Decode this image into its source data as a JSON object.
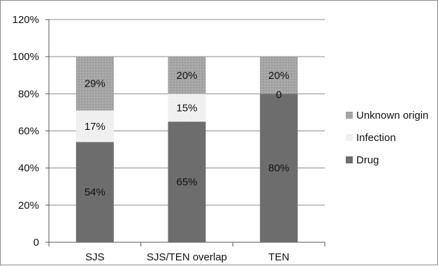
{
  "chart_data": {
    "type": "bar",
    "stacked": true,
    "categories": [
      "SJS",
      "SJS/TEN overlap",
      "TEN"
    ],
    "series": [
      {
        "name": "Drug",
        "values": [
          54,
          65,
          80
        ],
        "labels": [
          "54%",
          "65%",
          "80%"
        ],
        "color": "#6d6d6d",
        "pattern": "solid"
      },
      {
        "name": "Infection",
        "values": [
          17,
          15,
          0
        ],
        "labels": [
          "17%",
          "15%",
          "0"
        ],
        "color": "#f0f0f0",
        "pattern": "light-speckle"
      },
      {
        "name": "Unknown origin",
        "values": [
          29,
          20,
          20
        ],
        "labels": [
          "29%",
          "20%",
          "20%"
        ],
        "color": "#a3a3a3",
        "pattern": "dark-speckle"
      }
    ],
    "yticks": [
      "0",
      "20%",
      "40%",
      "60%",
      "80%",
      "100%",
      "120%"
    ],
    "ylim": [
      0,
      120
    ],
    "grid": true,
    "legend_position": "right",
    "legend_order": [
      "Unknown origin",
      "Infection",
      "Drug"
    ]
  }
}
